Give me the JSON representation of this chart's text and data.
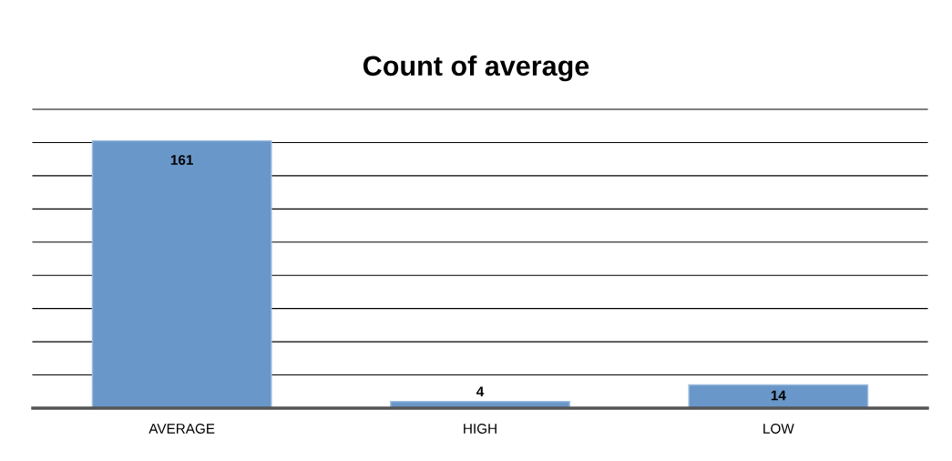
{
  "chart_data": {
    "type": "bar",
    "title": "Count of average",
    "categories": [
      "AVERAGE",
      "HIGH",
      "LOW"
    ],
    "series": [
      {
        "color": "#6a97c9",
        "values": [
          161,
          4,
          14
        ]
      }
    ],
    "ylim": [
      0,
      180
    ],
    "yticks": [
      {
        "value": 0,
        "label": null
      },
      {
        "value": 20,
        "label": null
      },
      {
        "value": 40,
        "label": null
      },
      {
        "value": 60,
        "label": null
      },
      {
        "value": 80,
        "label": null
      },
      {
        "value": 100,
        "label": null
      },
      {
        "value": 120,
        "label": null
      },
      {
        "value": 140,
        "label": null
      },
      {
        "value": 160,
        "label": null
      },
      {
        "value": 180,
        "label": null
      }
    ],
    "grid": "y",
    "tick_labels": "x",
    "data_labels": true
  }
}
